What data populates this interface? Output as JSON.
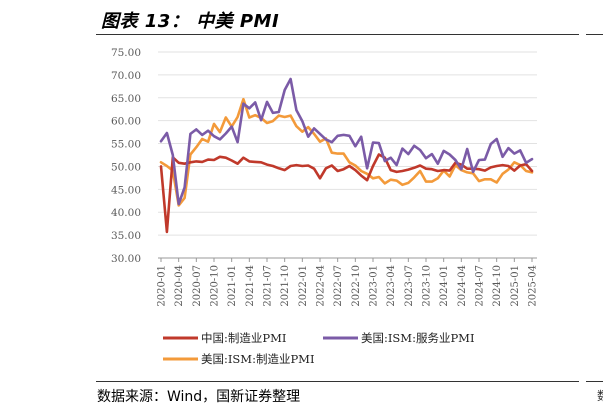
{
  "header": {
    "title": "图表 13： 中美 PMI"
  },
  "footer": {
    "source": "数据来源：Wind，国新证券整理",
    "edge_char": "数"
  },
  "chart_data": {
    "type": "line",
    "ylim": [
      30,
      75
    ],
    "yticks": [
      "75.00",
      "70.00",
      "65.00",
      "60.00",
      "55.00",
      "50.00",
      "45.00",
      "40.00",
      "35.00",
      "30.00"
    ],
    "ytick_values": [
      75,
      70,
      65,
      60,
      55,
      50,
      45,
      40,
      35,
      30
    ],
    "xtick_labels": [
      "2020-01",
      "2020-04",
      "2020-07",
      "2020-10",
      "2021-01",
      "2021-04",
      "2021-07",
      "2021-10",
      "2022-01",
      "2022-04",
      "2022-07",
      "2022-10",
      "2023-01",
      "2023-04",
      "2023-07",
      "2023-10",
      "2024-01",
      "2024-04",
      "2024-07",
      "2024-10",
      "2025-01",
      "2025-04"
    ],
    "x_start": "2020-01",
    "x_end": "2025-04",
    "grid": "horizontal",
    "legend_position": "bottom",
    "colors": {
      "cn_mfg": "#C0392B",
      "us_svc": "#7B5BA7",
      "us_mfg": "#F39A3A"
    },
    "series": [
      {
        "name": "中国:制造业PMI",
        "color_key": "cn_mfg",
        "values": [
          50.0,
          35.7,
          52.0,
          50.8,
          50.6,
          50.9,
          51.1,
          51.0,
          51.5,
          51.4,
          52.1,
          51.9,
          51.3,
          50.6,
          51.9,
          51.1,
          51.0,
          50.9,
          50.4,
          50.1,
          49.6,
          49.2,
          50.1,
          50.3,
          50.1,
          50.2,
          49.5,
          47.4,
          49.6,
          50.2,
          49.0,
          49.4,
          50.1,
          49.2,
          48.0,
          47.0,
          50.1,
          52.6,
          51.9,
          49.2,
          48.8,
          49.0,
          49.3,
          49.7,
          50.2,
          49.5,
          49.4,
          49.0,
          49.2,
          49.1,
          50.8,
          50.4,
          49.5,
          49.5,
          49.4,
          49.1,
          49.8,
          50.1,
          50.3,
          50.1,
          49.1,
          50.2,
          50.5,
          49.0
        ]
      },
      {
        "name": "美国:ISM:服务业PMI",
        "color_key": "us_svc",
        "values": [
          55.5,
          57.3,
          52.5,
          41.8,
          45.4,
          57.1,
          58.1,
          56.9,
          57.8,
          56.6,
          55.9,
          57.2,
          58.7,
          55.3,
          63.7,
          62.7,
          64.0,
          60.1,
          64.1,
          61.7,
          61.9,
          66.7,
          69.1,
          62.3,
          59.9,
          56.5,
          58.3,
          57.1,
          55.9,
          55.3,
          56.7,
          56.9,
          56.7,
          54.4,
          56.5,
          49.6,
          55.2,
          55.1,
          51.2,
          51.9,
          50.3,
          53.9,
          52.7,
          54.5,
          53.6,
          51.8,
          52.7,
          50.6,
          53.4,
          52.6,
          51.4,
          49.4,
          53.8,
          48.8,
          51.4,
          51.5,
          54.9,
          56.0,
          52.1,
          54.0,
          52.8,
          53.5,
          50.8,
          51.6
        ]
      },
      {
        "name": "美国:ISM:制造业PMI",
        "color_key": "us_mfg",
        "values": [
          50.9,
          50.1,
          49.1,
          41.5,
          43.1,
          52.6,
          54.2,
          56.0,
          55.4,
          59.3,
          57.5,
          60.7,
          58.7,
          60.8,
          64.7,
          60.7,
          61.2,
          60.6,
          59.5,
          59.9,
          61.1,
          60.8,
          61.1,
          58.8,
          57.6,
          58.6,
          57.1,
          55.4,
          56.1,
          53.0,
          52.8,
          52.8,
          50.9,
          50.2,
          49.0,
          48.4,
          47.4,
          47.7,
          46.3,
          47.1,
          46.9,
          46.0,
          46.4,
          47.6,
          49.0,
          46.7,
          46.7,
          47.4,
          49.1,
          47.8,
          50.3,
          49.2,
          48.7,
          48.5,
          46.8,
          47.2,
          47.2,
          46.5,
          48.4,
          49.3,
          50.9,
          50.3,
          49.0,
          48.7
        ]
      }
    ]
  }
}
